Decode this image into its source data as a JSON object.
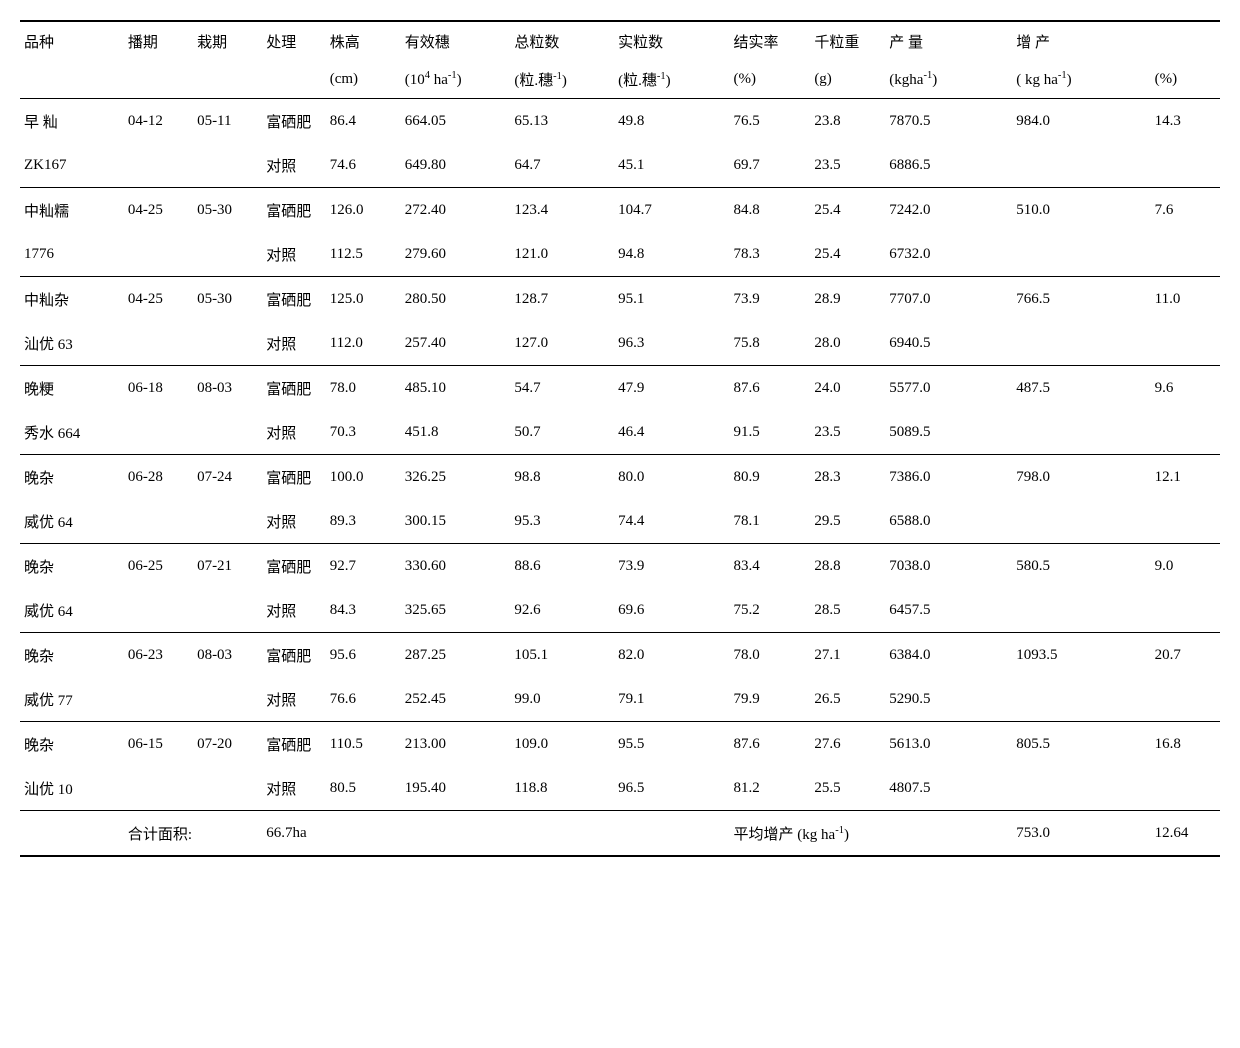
{
  "headers1": {
    "variety": "品种",
    "sow": "播期",
    "trans": "栽期",
    "treat": "处理",
    "height": "株高",
    "panicle": "有效穗",
    "total": "总粒数",
    "filled": "实粒数",
    "rate": "结实率",
    "weight": "千粒重",
    "yield": "产 量",
    "incr": "增   产"
  },
  "headers2": {
    "height": "(cm)",
    "panicle_a": "(10",
    "panicle_b": " ha",
    "panicle_c": ")",
    "total": "(粒.穗",
    "total_b": ")",
    "filled": "(粒.穗",
    "filled_b": ")",
    "rate": "(%)",
    "weight": "(g)",
    "yield": "(kgha",
    "yield_b": ")",
    "incr": "(  kg ha",
    "incr_b": ")",
    "pct": "(%)"
  },
  "groups": [
    {
      "r1": {
        "variety": "早 籼",
        "sow": "04-12",
        "trans": "05-11",
        "treat": "富硒肥",
        "height": "86.4",
        "panicle": "664.05",
        "total": "65.13",
        "filled": "49.8",
        "rate": "76.5",
        "weight": "23.8",
        "yield": "7870.5",
        "incr": "984.0",
        "pct": "14.3"
      },
      "r2": {
        "variety": "ZK167",
        "sow": "",
        "trans": "",
        "treat": "对照",
        "height": "74.6",
        "panicle": "649.80",
        "total": "64.7",
        "filled": "45.1",
        "rate": "69.7",
        "weight": "23.5",
        "yield": "6886.5",
        "incr": "",
        "pct": ""
      }
    },
    {
      "r1": {
        "variety": "中籼糯",
        "sow": "04-25",
        "trans": "05-30",
        "treat": "富硒肥",
        "height": "126.0",
        "panicle": "272.40",
        "total": "123.4",
        "filled": "104.7",
        "rate": "84.8",
        "weight": "25.4",
        "yield": "7242.0",
        "incr": "510.0",
        "pct": "7.6"
      },
      "r2": {
        "variety": "1776",
        "sow": "",
        "trans": "",
        "treat": "对照",
        "height": "112.5",
        "panicle": "279.60",
        "total": "121.0",
        "filled": "94.8",
        "rate": "78.3",
        "weight": "25.4",
        "yield": "6732.0",
        "incr": "",
        "pct": ""
      }
    },
    {
      "r1": {
        "variety": "中籼杂",
        "sow": "04-25",
        "trans": "05-30",
        "treat": "富硒肥",
        "height": "125.0",
        "panicle": "280.50",
        "total": "128.7",
        "filled": "95.1",
        "rate": "73.9",
        "weight": "28.9",
        "yield": "7707.0",
        "incr": "766.5",
        "pct": "11.0"
      },
      "r2": {
        "variety": "汕优 63",
        "sow": "",
        "trans": "",
        "treat": "对照",
        "height": "112.0",
        "panicle": "257.40",
        "total": "127.0",
        "filled": "96.3",
        "rate": "75.8",
        "weight": "28.0",
        "yield": "6940.5",
        "incr": "",
        "pct": ""
      }
    },
    {
      "r1": {
        "variety": "晚粳",
        "sow": "06-18",
        "trans": "08-03",
        "treat": "富硒肥",
        "height": "78.0",
        "panicle": "485.10",
        "total": "54.7",
        "filled": "47.9",
        "rate": "87.6",
        "weight": "24.0",
        "yield": "5577.0",
        "incr": "487.5",
        "pct": "9.6"
      },
      "r2": {
        "variety": "秀水 664",
        "sow": "",
        "trans": "",
        "treat": "对照",
        "height": "70.3",
        "panicle": "451.8",
        "total": "50.7",
        "filled": "46.4",
        "rate": "91.5",
        "weight": "23.5",
        "yield": "5089.5",
        "incr": "",
        "pct": ""
      }
    },
    {
      "r1": {
        "variety": "晚杂",
        "sow": "06-28",
        "trans": "07-24",
        "treat": "富硒肥",
        "height": "100.0",
        "panicle": "326.25",
        "total": "98.8",
        "filled": "80.0",
        "rate": "80.9",
        "weight": "28.3",
        "yield": "7386.0",
        "incr": "798.0",
        "pct": "12.1"
      },
      "r2": {
        "variety": "威优 64",
        "sow": "",
        "trans": "",
        "treat": "对照",
        "height": "89.3",
        "panicle": "300.15",
        "total": "95.3",
        "filled": "74.4",
        "rate": "78.1",
        "weight": "29.5",
        "yield": "6588.0",
        "incr": "",
        "pct": ""
      }
    },
    {
      "r1": {
        "variety": "晚杂",
        "sow": "06-25",
        "trans": "07-21",
        "treat": "富硒肥",
        "height": "92.7",
        "panicle": "330.60",
        "total": "88.6",
        "filled": "73.9",
        "rate": "83.4",
        "weight": "28.8",
        "yield": "7038.0",
        "incr": "580.5",
        "pct": "9.0"
      },
      "r2": {
        "variety": "威优 64",
        "sow": "",
        "trans": "",
        "treat": "对照",
        "height": "84.3",
        "panicle": "325.65",
        "total": "92.6",
        "filled": "69.6",
        "rate": "75.2",
        "weight": "28.5",
        "yield": "6457.5",
        "incr": "",
        "pct": ""
      }
    },
    {
      "r1": {
        "variety": "晚杂",
        "sow": "06-23",
        "trans": "08-03",
        "treat": "富硒肥",
        "height": "95.6",
        "panicle": "287.25",
        "total": "105.1",
        "filled": "82.0",
        "rate": "78.0",
        "weight": "27.1",
        "yield": "6384.0",
        "incr": "1093.5",
        "pct": "20.7"
      },
      "r2": {
        "variety": "威优 77",
        "sow": "",
        "trans": "",
        "treat": "对照",
        "height": "76.6",
        "panicle": "252.45",
        "total": "99.0",
        "filled": "79.1",
        "rate": "79.9",
        "weight": "26.5",
        "yield": "5290.5",
        "incr": "",
        "pct": ""
      }
    },
    {
      "r1": {
        "variety": "晚杂",
        "sow": "06-15",
        "trans": "07-20",
        "treat": "富硒肥",
        "height": "110.5",
        "panicle": "213.00",
        "total": "109.0",
        "filled": "95.5",
        "rate": "87.6",
        "weight": "27.6",
        "yield": "5613.0",
        "incr": "805.5",
        "pct": "16.8"
      },
      "r2": {
        "variety": "汕优 10",
        "sow": "",
        "trans": "",
        "treat": "对照",
        "height": "80.5",
        "panicle": "195.40",
        "total": "118.8",
        "filled": "96.5",
        "rate": "81.2",
        "weight": "25.5",
        "yield": "4807.5",
        "incr": "",
        "pct": ""
      }
    }
  ],
  "summary": {
    "area_label": "合计面积:",
    "area_value": "66.7ha",
    "avg_label_a": "平均增产 (kg ha",
    "avg_label_b": ")",
    "avg_incr": "753.0",
    "avg_pct": "12.64"
  }
}
